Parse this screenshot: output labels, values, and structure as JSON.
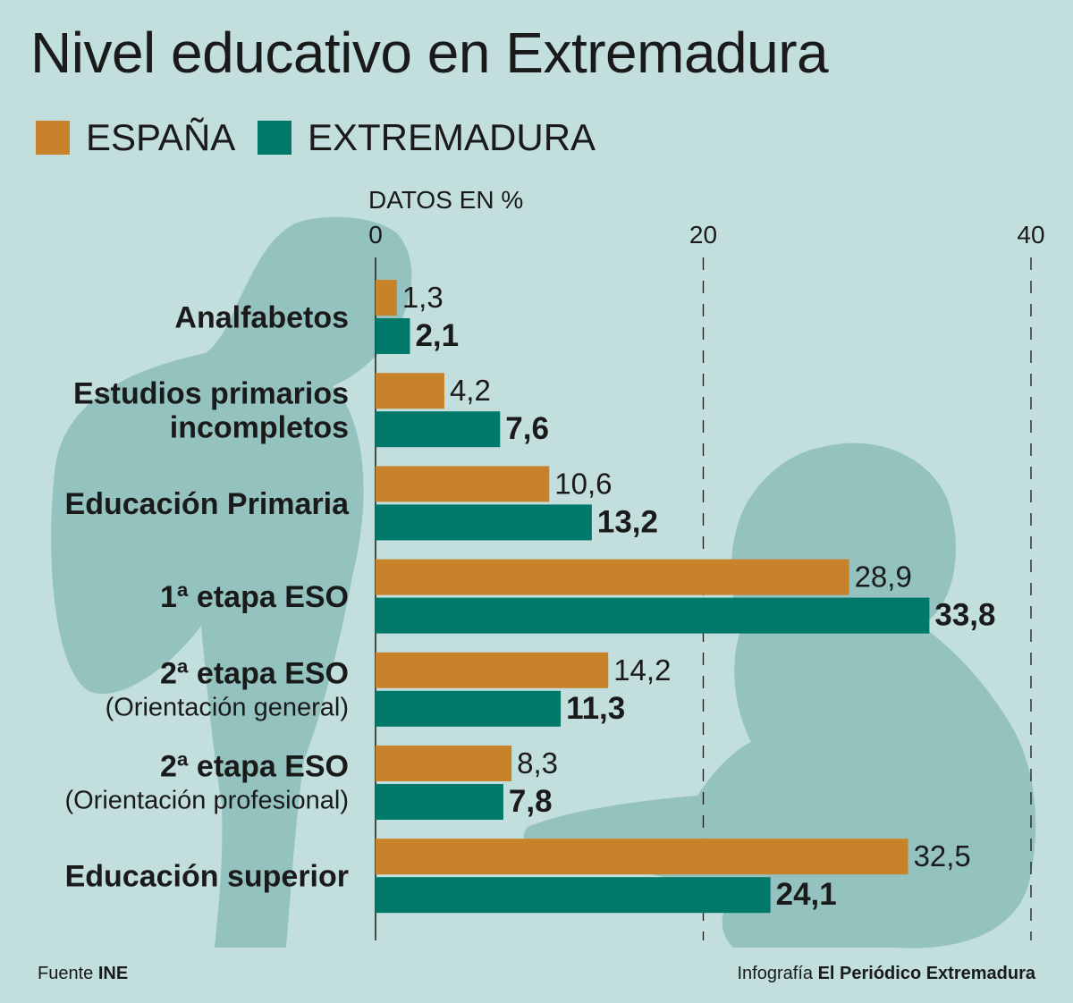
{
  "title": "Nivel educativo en Extremadura",
  "units_label": "DATOS EN %",
  "legend": [
    {
      "name": "ESPAÑA",
      "color": "#c8832a"
    },
    {
      "name": "EXTREMADURA",
      "color": "#00796a"
    }
  ],
  "footer": {
    "source_prefix": "Fuente",
    "source": "INE",
    "credit_prefix": "Infografía",
    "credit": "El Periódico Extremadura"
  },
  "chart_data": {
    "type": "bar",
    "orientation": "horizontal",
    "title": "Nivel educativo en Extremadura",
    "xlim": [
      0,
      40
    ],
    "x_ticks": [
      0,
      20,
      40
    ],
    "grid": "dashed vertical lines at 20 and 40",
    "legend_position": "top-left",
    "categories": [
      {
        "label": "Analfabetos",
        "sublabel": ""
      },
      {
        "label": "Estudios primarios\nincompletos",
        "sublabel": ""
      },
      {
        "label": "Educación Primaria",
        "sublabel": ""
      },
      {
        "label": "1ª etapa ESO",
        "sublabel": ""
      },
      {
        "label": "2ª etapa ESO",
        "sublabel": "(Orientación general)"
      },
      {
        "label": "2ª etapa ESO",
        "sublabel": "(Orientación profesional)"
      },
      {
        "label": "Educación superior",
        "sublabel": ""
      }
    ],
    "series": [
      {
        "name": "ESPAÑA",
        "color": "#c8832a",
        "values": [
          1.3,
          4.2,
          10.6,
          28.9,
          14.2,
          8.3,
          32.5
        ],
        "value_labels": [
          "1,3",
          "4,2",
          "10,6",
          "28,9",
          "14,2",
          "8,3",
          "32,5"
        ]
      },
      {
        "name": "EXTREMADURA",
        "color": "#00796a",
        "values": [
          2.1,
          7.6,
          13.2,
          33.8,
          11.3,
          7.8,
          24.1
        ],
        "value_labels": [
          "2,1",
          "7,6",
          "13,2",
          "33,8",
          "11,3",
          "7,8",
          "24,1"
        ]
      }
    ]
  }
}
